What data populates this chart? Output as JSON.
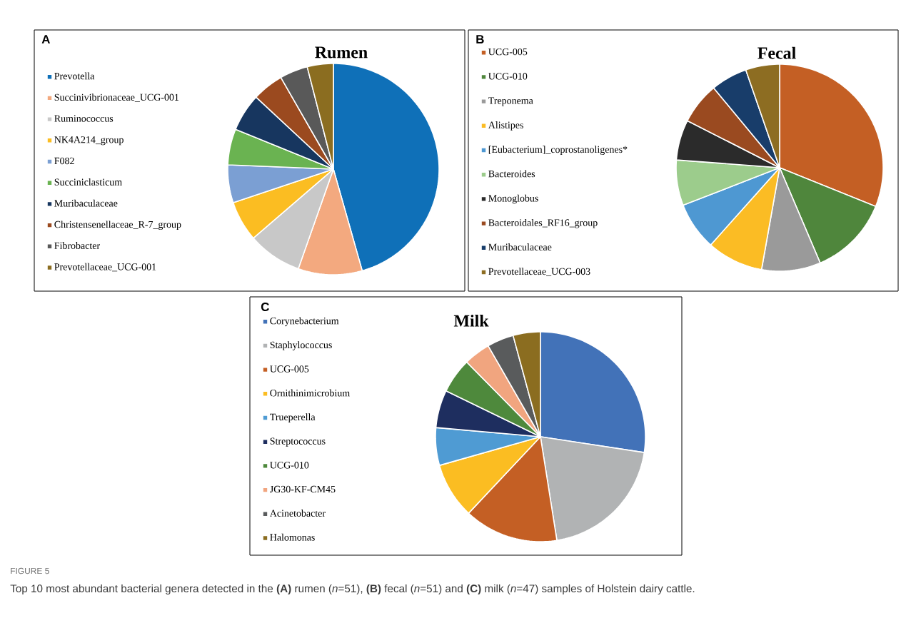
{
  "chart_data": [
    {
      "type": "pie",
      "title": "Rumen",
      "legend": "left",
      "annotations": [
        "A"
      ],
      "categories": [
        "Prevotella",
        "Succinivibrionaceae_UCG-001",
        "Ruminococcus",
        "NK4A214_group",
        "F082",
        "Succiniclasticum",
        "Muribaculaceae",
        "Christensenellaceae_R-7_group",
        "Fibrobacter",
        "Prevotellaceae_UCG-001"
      ],
      "values": [
        45.7,
        9.8,
        8.3,
        6.2,
        5.8,
        5.5,
        5.8,
        4.8,
        4.3,
        4.0
      ],
      "colors": [
        "#0f70b8",
        "#f3a97f",
        "#c8c8c8",
        "#fbbd22",
        "#7b9fd3",
        "#6ab351",
        "#17365f",
        "#9b4a1f",
        "#595959",
        "#8b6d20"
      ]
    },
    {
      "type": "pie",
      "title": "Fecal",
      "legend": "left",
      "annotations": [
        "B"
      ],
      "categories": [
        "UCG-005",
        "UCG-010",
        "Treponema",
        "Alistipes",
        "[Eubacterium]_coprostanoligenes*",
        "Bacteroides",
        "Monoglobus",
        "Bacteroidales_RF16_group",
        "Muribaculaceae",
        "Prevotellaceae_UCG-003"
      ],
      "values": [
        31.1,
        12.5,
        9.2,
        8.8,
        7.5,
        7.1,
        6.3,
        6.5,
        5.7,
        5.3
      ],
      "colors": [
        "#c45f24",
        "#4f863c",
        "#9a9a9a",
        "#fbbc24",
        "#4e98d2",
        "#9ccc8c",
        "#2b2b2b",
        "#9a4a20",
        "#183d6a",
        "#8d6d22"
      ]
    },
    {
      "type": "pie",
      "title": "Milk",
      "legend": "left",
      "annotations": [
        "C",
        "FIGURE 5",
        "Top 10 most abundant bacterial genera detected in the **(A)** rumen (*n*=51), **(B)** fecal (*n*=51) and **(C)** milk (*n*=47) samples of Holstein dairy cattle."
      ],
      "categories": [
        "Corynebacterium",
        "Staphylococcus",
        "UCG-005",
        "Ornithinimicrobium",
        "Trueperella",
        "Streptococcus",
        "UCG-010",
        "JG30-KF-CM45",
        "Acinetobacter",
        "Halomonas"
      ],
      "values": [
        27.4,
        20.1,
        14.5,
        8.6,
        5.8,
        5.8,
        5.4,
        4.1,
        4.1,
        4.2
      ],
      "colors": [
        "#4272b8",
        "#b1b3b4",
        "#c45f24",
        "#fbbd22",
        "#4f9bd3",
        "#1e2e5f",
        "#4e893c",
        "#f1a57f",
        "#595b5c",
        "#8b6d20"
      ]
    }
  ]
}
